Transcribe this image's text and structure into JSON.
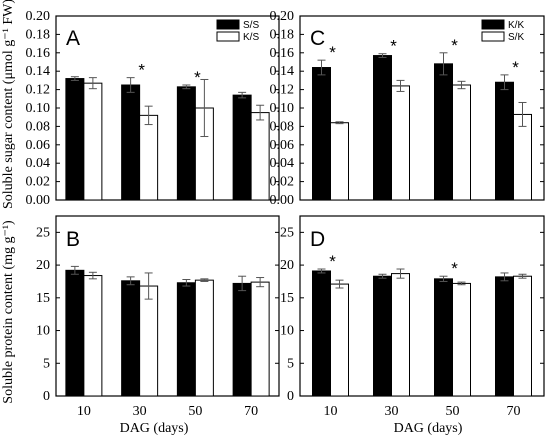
{
  "ylabels": {
    "top": "Soluble sugar content (μmol g⁻¹ FW)",
    "bottom": "Soluble protein content (mg g⁻¹)"
  },
  "xlabels": {
    "left": "DAG (days)",
    "right": "DAG (days)"
  },
  "colors": {
    "filled": "#000000",
    "open": "#ffffff",
    "stroke": "#000000"
  },
  "chart_data": [
    {
      "type": "bar",
      "panel": "A",
      "categories": [
        "10",
        "30",
        "50",
        "70"
      ],
      "ylim": [
        0,
        0.2
      ],
      "yticks": [
        "0.00",
        "0.02",
        "0.04",
        "0.06",
        "0.08",
        "0.10",
        "0.12",
        "0.14",
        "0.16",
        "0.18",
        "0.20"
      ],
      "series": [
        {
          "name": "S/S",
          "fill": "filled",
          "values": [
            0.132,
            0.125,
            0.123,
            0.114
          ],
          "errors": [
            0.002,
            0.008,
            0.002,
            0.003
          ]
        },
        {
          "name": "K/S",
          "fill": "open",
          "values": [
            0.127,
            0.092,
            0.1,
            0.095
          ],
          "errors": [
            0.006,
            0.01,
            0.031,
            0.008
          ]
        }
      ],
      "significance": [
        "",
        "*",
        "*",
        ""
      ]
    },
    {
      "type": "bar",
      "panel": "C",
      "categories": [
        "10",
        "30",
        "50",
        "70"
      ],
      "ylim": [
        0,
        0.2
      ],
      "yticks": [
        "0.00",
        "0.02",
        "0.04",
        "0.06",
        "0.08",
        "0.10",
        "0.12",
        "0.14",
        "0.16",
        "0.18",
        "0.20"
      ],
      "series": [
        {
          "name": "K/K",
          "fill": "filled",
          "values": [
            0.144,
            0.157,
            0.148,
            0.128
          ],
          "errors": [
            0.008,
            0.002,
            0.012,
            0.008
          ]
        },
        {
          "name": "S/K",
          "fill": "open",
          "values": [
            0.084,
            0.124,
            0.125,
            0.093
          ],
          "errors": [
            0.001,
            0.006,
            0.004,
            0.013
          ]
        }
      ],
      "significance": [
        "*",
        "*",
        "*",
        "*"
      ]
    },
    {
      "type": "bar",
      "panel": "B",
      "categories": [
        "10",
        "30",
        "50",
        "70"
      ],
      "ylim": [
        0,
        27.5
      ],
      "yticks": [
        "0",
        "5",
        "10",
        "15",
        "20",
        "25"
      ],
      "series": [
        {
          "fill": "filled",
          "values": [
            19.2,
            17.6,
            17.3,
            17.2
          ],
          "errors": [
            0.6,
            0.6,
            0.5,
            1.1
          ]
        },
        {
          "fill": "open",
          "values": [
            18.4,
            16.8,
            17.7,
            17.4
          ],
          "errors": [
            0.5,
            2.0,
            0.2,
            0.7
          ]
        }
      ],
      "significance": [
        "",
        "",
        "",
        ""
      ]
    },
    {
      "type": "bar",
      "panel": "D",
      "categories": [
        "10",
        "30",
        "50",
        "70"
      ],
      "ylim": [
        0,
        27.5
      ],
      "yticks": [
        "0",
        "5",
        "10",
        "15",
        "20",
        "25"
      ],
      "series": [
        {
          "fill": "filled",
          "values": [
            19.1,
            18.3,
            17.9,
            18.2
          ],
          "errors": [
            0.3,
            0.3,
            0.4,
            0.6
          ]
        },
        {
          "fill": "open",
          "values": [
            17.1,
            18.7,
            17.2,
            18.3
          ],
          "errors": [
            0.6,
            0.7,
            0.2,
            0.3
          ]
        }
      ],
      "significance": [
        "*",
        "",
        "*",
        ""
      ]
    }
  ]
}
